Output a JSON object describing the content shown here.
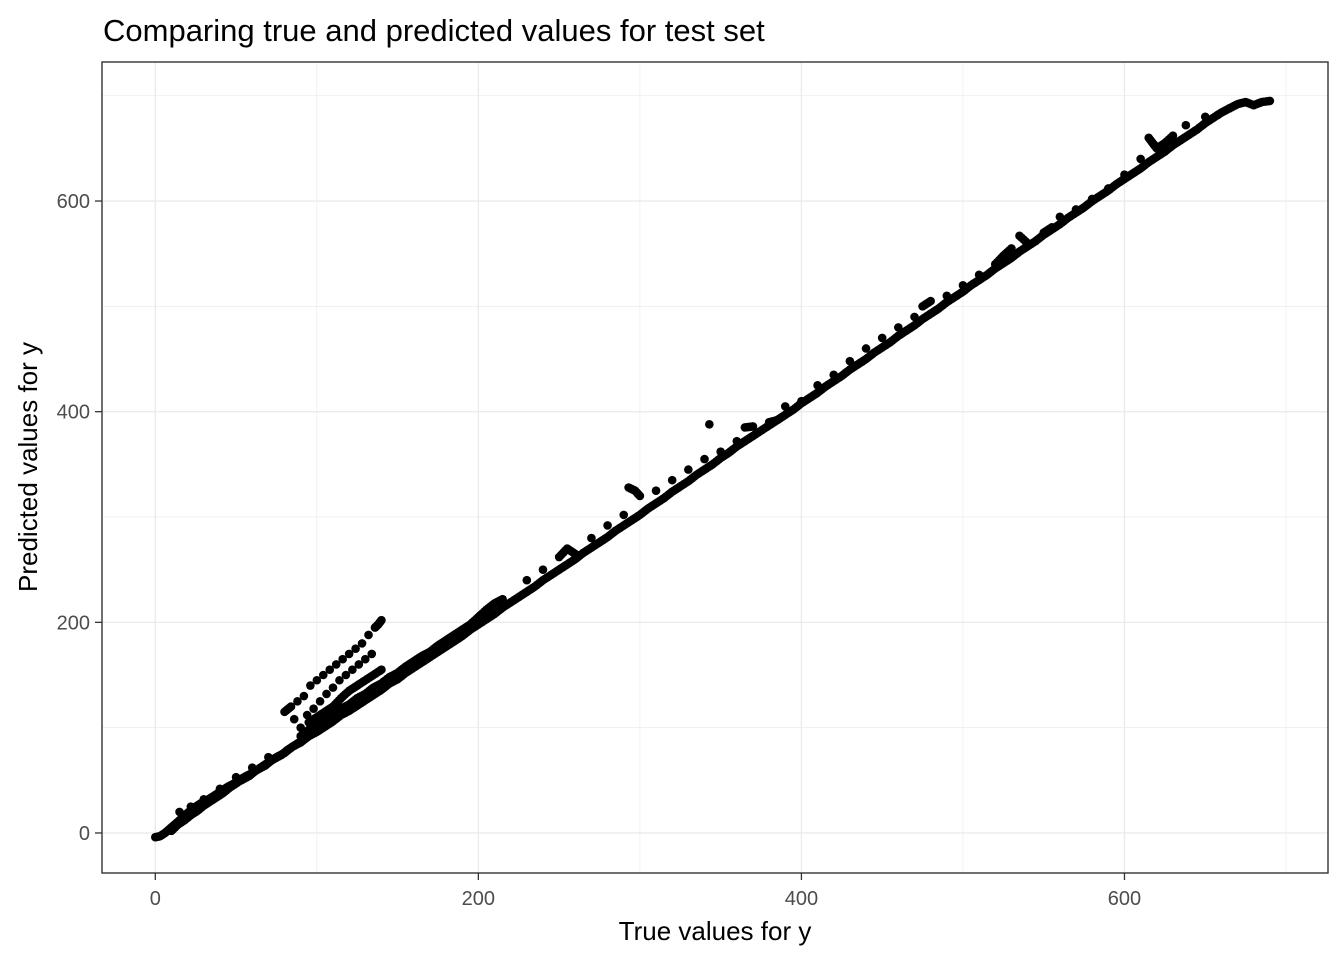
{
  "chart_data": {
    "type": "scatter",
    "title": "Comparing true and predicted values for test set",
    "xlabel": "True values for y",
    "ylabel": "Predicted values for y",
    "xlim": [
      -33,
      726
    ],
    "ylim": [
      -38,
      732
    ],
    "x_ticks": [
      {
        "value": 0,
        "label": "0"
      },
      {
        "value": 200,
        "label": "200"
      },
      {
        "value": 400,
        "label": "400"
      },
      {
        "value": 600,
        "label": "600"
      }
    ],
    "y_ticks": [
      {
        "value": 0,
        "label": "0"
      },
      {
        "value": 200,
        "label": "200"
      },
      {
        "value": 400,
        "label": "400"
      },
      {
        "value": 600,
        "label": "600"
      }
    ],
    "x_minor_grid": [
      -100,
      100,
      300,
      500,
      700
    ],
    "y_minor_grid": [
      100,
      300,
      500,
      700
    ],
    "grid": true,
    "legend": "none",
    "point_color": "#000000",
    "grid_color": "#ebebeb",
    "points": [
      [
        0,
        -4
      ],
      [
        3,
        -3
      ],
      [
        6,
        0
      ],
      [
        9,
        4
      ],
      [
        12,
        8
      ],
      [
        15,
        12
      ],
      [
        18,
        16
      ],
      [
        20,
        19
      ],
      [
        24,
        24
      ],
      [
        28,
        28
      ],
      [
        32,
        31
      ],
      [
        36,
        35
      ],
      [
        40,
        39
      ],
      [
        45,
        44
      ],
      [
        50,
        48
      ],
      [
        55,
        53
      ],
      [
        60,
        57
      ],
      [
        65,
        62
      ],
      [
        70,
        67
      ],
      [
        75,
        72
      ],
      [
        80,
        76
      ],
      [
        85,
        82
      ],
      [
        90,
        86
      ],
      [
        95,
        92
      ],
      [
        100,
        96
      ],
      [
        105,
        101
      ],
      [
        110,
        106
      ],
      [
        115,
        112
      ],
      [
        120,
        116
      ],
      [
        125,
        121
      ],
      [
        130,
        126
      ],
      [
        135,
        131
      ],
      [
        140,
        136
      ],
      [
        145,
        142
      ],
      [
        150,
        146
      ],
      [
        155,
        152
      ],
      [
        160,
        157
      ],
      [
        165,
        162
      ],
      [
        170,
        167
      ],
      [
        175,
        172
      ],
      [
        180,
        177
      ],
      [
        185,
        182
      ],
      [
        190,
        187
      ],
      [
        195,
        193
      ],
      [
        200,
        198
      ],
      [
        205,
        203
      ],
      [
        210,
        208
      ],
      [
        215,
        214
      ],
      [
        220,
        219
      ],
      [
        225,
        224
      ],
      [
        230,
        229
      ],
      [
        235,
        234
      ],
      [
        240,
        240
      ],
      [
        245,
        245
      ],
      [
        250,
        250
      ],
      [
        255,
        255
      ],
      [
        260,
        260
      ],
      [
        265,
        266
      ],
      [
        270,
        271
      ],
      [
        275,
        276
      ],
      [
        280,
        281
      ],
      [
        285,
        287
      ],
      [
        290,
        292
      ],
      [
        295,
        297
      ],
      [
        300,
        302
      ],
      [
        305,
        308
      ],
      [
        310,
        313
      ],
      [
        315,
        318
      ],
      [
        320,
        324
      ],
      [
        325,
        329
      ],
      [
        330,
        334
      ],
      [
        335,
        340
      ],
      [
        340,
        345
      ],
      [
        345,
        350
      ],
      [
        350,
        356
      ],
      [
        355,
        361
      ],
      [
        360,
        367
      ],
      [
        365,
        372
      ],
      [
        370,
        377
      ],
      [
        375,
        382
      ],
      [
        380,
        387
      ],
      [
        385,
        392
      ],
      [
        390,
        397
      ],
      [
        395,
        402
      ],
      [
        400,
        408
      ],
      [
        405,
        413
      ],
      [
        410,
        418
      ],
      [
        415,
        424
      ],
      [
        420,
        429
      ],
      [
        425,
        434
      ],
      [
        430,
        440
      ],
      [
        435,
        445
      ],
      [
        440,
        450
      ],
      [
        445,
        456
      ],
      [
        450,
        461
      ],
      [
        455,
        466
      ],
      [
        460,
        472
      ],
      [
        465,
        477
      ],
      [
        470,
        482
      ],
      [
        475,
        488
      ],
      [
        480,
        493
      ],
      [
        485,
        498
      ],
      [
        490,
        504
      ],
      [
        495,
        509
      ],
      [
        500,
        514
      ],
      [
        505,
        520
      ],
      [
        510,
        525
      ],
      [
        515,
        530
      ],
      [
        520,
        536
      ],
      [
        525,
        541
      ],
      [
        530,
        546
      ],
      [
        535,
        552
      ],
      [
        540,
        557
      ],
      [
        545,
        562
      ],
      [
        550,
        568
      ],
      [
        555,
        573
      ],
      [
        560,
        578
      ],
      [
        565,
        584
      ],
      [
        570,
        589
      ],
      [
        575,
        594
      ],
      [
        580,
        600
      ],
      [
        585,
        605
      ],
      [
        590,
        610
      ],
      [
        595,
        616
      ],
      [
        600,
        621
      ],
      [
        605,
        626
      ],
      [
        610,
        631
      ],
      [
        615,
        637
      ],
      [
        620,
        642
      ],
      [
        625,
        647
      ],
      [
        630,
        653
      ],
      [
        635,
        658
      ],
      [
        640,
        663
      ],
      [
        645,
        668
      ],
      [
        650,
        674
      ],
      [
        655,
        679
      ],
      [
        660,
        684
      ],
      [
        665,
        688
      ],
      [
        670,
        692
      ],
      [
        675,
        694
      ],
      [
        680,
        691
      ],
      [
        685,
        694
      ],
      [
        690,
        695
      ],
      [
        10,
        2
      ],
      [
        14,
        8
      ],
      [
        18,
        12
      ],
      [
        22,
        17
      ],
      [
        26,
        21
      ],
      [
        30,
        26
      ],
      [
        34,
        30
      ],
      [
        38,
        34
      ],
      [
        42,
        38
      ],
      [
        46,
        43
      ],
      [
        52,
        49
      ],
      [
        58,
        54
      ],
      [
        62,
        59
      ],
      [
        68,
        64
      ],
      [
        72,
        69
      ],
      [
        78,
        74
      ],
      [
        82,
        79
      ],
      [
        88,
        85
      ],
      [
        92,
        89
      ],
      [
        98,
        95
      ],
      [
        15,
        20
      ],
      [
        22,
        25
      ],
      [
        30,
        32
      ],
      [
        40,
        42
      ],
      [
        50,
        53
      ],
      [
        60,
        62
      ],
      [
        70,
        72
      ],
      [
        80,
        115
      ],
      [
        84,
        120
      ],
      [
        86,
        108
      ],
      [
        88,
        125
      ],
      [
        90,
        100
      ],
      [
        92,
        130
      ],
      [
        94,
        112
      ],
      [
        96,
        140
      ],
      [
        98,
        118
      ],
      [
        100,
        145
      ],
      [
        102,
        125
      ],
      [
        104,
        150
      ],
      [
        106,
        132
      ],
      [
        108,
        155
      ],
      [
        110,
        138
      ],
      [
        112,
        160
      ],
      [
        114,
        145
      ],
      [
        116,
        165
      ],
      [
        118,
        150
      ],
      [
        120,
        170
      ],
      [
        122,
        155
      ],
      [
        124,
        175
      ],
      [
        126,
        160
      ],
      [
        128,
        180
      ],
      [
        130,
        165
      ],
      [
        132,
        188
      ],
      [
        134,
        170
      ],
      [
        136,
        195
      ],
      [
        138,
        198
      ],
      [
        140,
        202
      ],
      [
        95,
        105
      ],
      [
        100,
        110
      ],
      [
        105,
        115
      ],
      [
        110,
        120
      ],
      [
        115,
        128
      ],
      [
        120,
        135
      ],
      [
        125,
        140
      ],
      [
        130,
        145
      ],
      [
        135,
        150
      ],
      [
        140,
        155
      ],
      [
        90,
        92
      ],
      [
        95,
        98
      ],
      [
        100,
        102
      ],
      [
        105,
        108
      ],
      [
        110,
        112
      ],
      [
        115,
        118
      ],
      [
        120,
        122
      ],
      [
        125,
        128
      ],
      [
        130,
        132
      ],
      [
        135,
        138
      ],
      [
        140,
        142
      ],
      [
        145,
        148
      ],
      [
        150,
        152
      ],
      [
        155,
        158
      ],
      [
        160,
        163
      ],
      [
        165,
        168
      ],
      [
        170,
        172
      ],
      [
        175,
        178
      ],
      [
        180,
        183
      ],
      [
        185,
        188
      ],
      [
        190,
        193
      ],
      [
        195,
        198
      ],
      [
        200,
        205
      ],
      [
        205,
        212
      ],
      [
        210,
        218
      ],
      [
        215,
        222
      ],
      [
        230,
        240
      ],
      [
        240,
        250
      ],
      [
        250,
        262
      ],
      [
        255,
        270
      ],
      [
        260,
        265
      ],
      [
        270,
        280
      ],
      [
        280,
        292
      ],
      [
        290,
        302
      ],
      [
        293,
        328
      ],
      [
        297,
        325
      ],
      [
        300,
        320
      ],
      [
        310,
        325
      ],
      [
        320,
        335
      ],
      [
        330,
        345
      ],
      [
        340,
        355
      ],
      [
        343,
        388
      ],
      [
        350,
        362
      ],
      [
        360,
        372
      ],
      [
        365,
        385
      ],
      [
        370,
        386
      ],
      [
        380,
        390
      ],
      [
        385,
        392
      ],
      [
        390,
        405
      ],
      [
        400,
        410
      ],
      [
        410,
        425
      ],
      [
        420,
        435
      ],
      [
        430,
        448
      ],
      [
        440,
        460
      ],
      [
        450,
        470
      ],
      [
        460,
        480
      ],
      [
        470,
        490
      ],
      [
        475,
        500
      ],
      [
        480,
        505
      ],
      [
        490,
        510
      ],
      [
        500,
        520
      ],
      [
        510,
        530
      ],
      [
        520,
        540
      ],
      [
        525,
        548
      ],
      [
        530,
        555
      ],
      [
        535,
        567
      ],
      [
        540,
        560
      ],
      [
        550,
        570
      ],
      [
        555,
        575
      ],
      [
        560,
        585
      ],
      [
        570,
        592
      ],
      [
        580,
        602
      ],
      [
        590,
        612
      ],
      [
        600,
        625
      ],
      [
        610,
        640
      ],
      [
        615,
        660
      ],
      [
        618,
        654
      ],
      [
        620,
        650
      ],
      [
        625,
        655
      ],
      [
        630,
        662
      ],
      [
        638,
        672
      ],
      [
        650,
        680
      ],
      [
        658,
        682
      ],
      [
        665,
        688
      ]
    ]
  }
}
